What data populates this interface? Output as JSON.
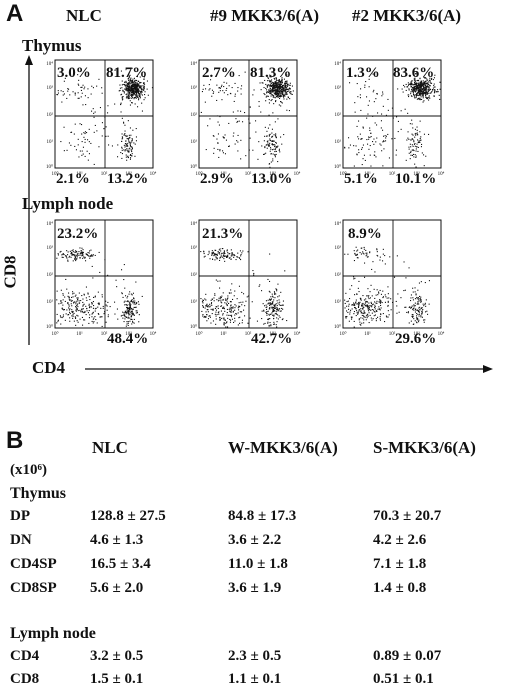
{
  "panelA": {
    "letter": "A",
    "columns": [
      "NLC",
      "#9 MKK3/6(A)",
      "#2 MKK3/6(A)"
    ],
    "rows": [
      {
        "label": "Thymus",
        "plots": [
          {
            "ul": "3.0%",
            "ur": "81.7%",
            "ll": "2.1%",
            "lr": "13.2%"
          },
          {
            "ul": "2.7%",
            "ur": "81.3%",
            "ll": "2.9%",
            "lr": "13.0%"
          },
          {
            "ul": "1.3%",
            "ur": "83.6%",
            "ll": "5.1%",
            "lr": "10.1%"
          }
        ]
      },
      {
        "label": "Lymph node",
        "plots": [
          {
            "ul": "23.2%",
            "ur": "",
            "ll": "",
            "lr": "48.4%"
          },
          {
            "ul": "21.3%",
            "ur": "",
            "ll": "",
            "lr": "42.7%"
          },
          {
            "ul": "8.9%",
            "ur": "",
            "ll": "",
            "lr": "29.6%"
          }
        ]
      }
    ],
    "yaxis_label": "CD8",
    "xaxis_label": "CD4",
    "tick_labels": [
      "10⁰",
      "10¹",
      "10²",
      "10³",
      "10⁴"
    ]
  },
  "panelB": {
    "letter": "B",
    "columns": [
      "NLC",
      "W-MKK3/6(A)",
      "S-MKK3/6(A)"
    ],
    "unit": "(x10⁶)",
    "sections": [
      {
        "label": "Thymus",
        "rows": [
          {
            "label": "DP",
            "values": [
              "128.8 ± 27.5",
              "84.8 ± 17.3",
              "70.3 ± 20.7"
            ]
          },
          {
            "label": "DN",
            "values": [
              "4.6 ± 1.3",
              "3.6 ± 2.2",
              "4.2 ± 2.6"
            ]
          },
          {
            "label": "CD4SP",
            "values": [
              "16.5 ± 3.4",
              "11.0 ± 1.8",
              "7.1 ± 1.8"
            ]
          },
          {
            "label": "CD8SP",
            "values": [
              "5.6 ± 2.0",
              "3.6 ± 1.9",
              "1.4 ± 0.8"
            ]
          }
        ]
      },
      {
        "label": "Lymph node",
        "rows": [
          {
            "label": "CD4",
            "values": [
              "3.2 ± 0.5",
              "2.3 ± 0.5",
              "0.89 ± 0.07"
            ]
          },
          {
            "label": "CD8",
            "values": [
              "1.5 ± 0.1",
              "1.1 ± 0.1",
              "0.51 ± 0.1"
            ]
          }
        ]
      }
    ]
  }
}
